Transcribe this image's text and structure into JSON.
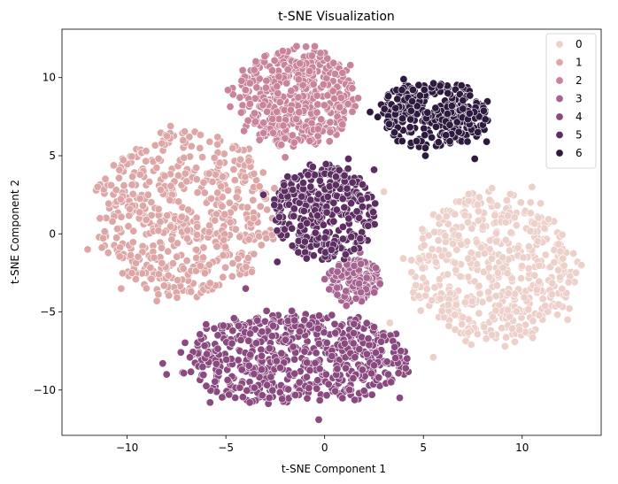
{
  "chart_data": {
    "type": "scatter",
    "title": "t-SNE Visualization",
    "xlabel": "t-SNE Component 1",
    "ylabel": "t-SNE Component 2",
    "xlim": [
      -13.3,
      14.0
    ],
    "ylim": [
      -12.9,
      13.1
    ],
    "xticks": [
      -10,
      -5,
      0,
      5,
      10
    ],
    "yticks": [
      -10,
      -5,
      0,
      5,
      10
    ],
    "grid": false,
    "legend": "top-right",
    "legend_title": "",
    "marker_edge_color": "#ffffff",
    "series": [
      {
        "name": "0",
        "color": "#ecd0c9",
        "cluster": {
          "center": [
            8.5,
            -2.2
          ],
          "rx": 4.6,
          "ry": 5.3,
          "count": 520
        },
        "points": [
          [
            3.0,
            2.7
          ],
          [
            12.8,
            -1.8
          ],
          [
            13.0,
            -2.0
          ],
          [
            5.5,
            -7.9
          ],
          [
            12.3,
            -5.5
          ],
          [
            10.5,
            3.0
          ],
          [
            3.3,
            -5.7
          ]
        ]
      },
      {
        "name": "1",
        "color": "#dea7a7",
        "cluster": {
          "center": [
            -7.0,
            1.3
          ],
          "rx": 4.9,
          "ry": 5.6,
          "count": 560
        },
        "points": [
          [
            -12.0,
            -1.0
          ],
          [
            -11.5,
            3.0
          ],
          [
            -7.8,
            6.9
          ],
          [
            -8.5,
            -4.3
          ],
          [
            -10.3,
            -3.5
          ],
          [
            -4.3,
            -0.2
          ],
          [
            -3.6,
            1.0
          ]
        ]
      },
      {
        "name": "2",
        "color": "#c9849a",
        "cluster": {
          "center": [
            -1.5,
            8.7
          ],
          "rx": 3.4,
          "ry": 3.4,
          "count": 420
        },
        "points": [
          [
            -4.9,
            9.2
          ],
          [
            -0.5,
            12.0
          ],
          [
            0.9,
            7.0
          ],
          [
            -3.3,
            6.0
          ],
          [
            1.3,
            10.8
          ],
          [
            -2.0,
            4.9
          ]
        ]
      },
      {
        "name": "3",
        "color": "#a66490",
        "cluster": {
          "center": [
            1.5,
            -3.0
          ],
          "rx": 1.4,
          "ry": 1.6,
          "count": 130
        },
        "points": [
          [
            0.0,
            -2.9
          ],
          [
            2.8,
            -3.2
          ],
          [
            1.8,
            -1.2
          ],
          [
            1.1,
            -4.6
          ]
        ]
      },
      {
        "name": "4",
        "color": "#8a4a80",
        "cluster": {
          "center": [
            -1.5,
            -8.0
          ],
          "rx": 6.2,
          "ry": 3.2,
          "count": 620
        },
        "points": [
          [
            -8.2,
            -8.3
          ],
          [
            -6.0,
            -5.8
          ],
          [
            -5.8,
            -10.8
          ],
          [
            -4.0,
            -3.5
          ],
          [
            -0.3,
            -11.9
          ],
          [
            3.8,
            -10.5
          ],
          [
            4.1,
            -8.6
          ],
          [
            -2.8,
            -10.5
          ],
          [
            -8.0,
            -9.0
          ]
        ]
      },
      {
        "name": "5",
        "color": "#5c2e62",
        "cluster": {
          "center": [
            0.0,
            1.4
          ],
          "rx": 2.8,
          "ry": 3.3,
          "count": 360
        },
        "points": [
          [
            -3.1,
            2.5
          ],
          [
            -2.4,
            -1.8
          ],
          [
            2.5,
            4.1
          ],
          [
            1.2,
            4.8
          ],
          [
            -1.0,
            -0.5
          ],
          [
            1.8,
            -0.3
          ]
        ]
      },
      {
        "name": "6",
        "color": "#2d1a3e",
        "cluster": {
          "center": [
            5.5,
            7.6
          ],
          "rx": 3.0,
          "ry": 2.3,
          "count": 310
        },
        "points": [
          [
            2.3,
            7.8
          ],
          [
            4.0,
            9.9
          ],
          [
            8.2,
            5.9
          ],
          [
            7.6,
            4.8
          ],
          [
            5.1,
            5.0
          ],
          [
            7.0,
            8.0
          ]
        ]
      }
    ]
  }
}
